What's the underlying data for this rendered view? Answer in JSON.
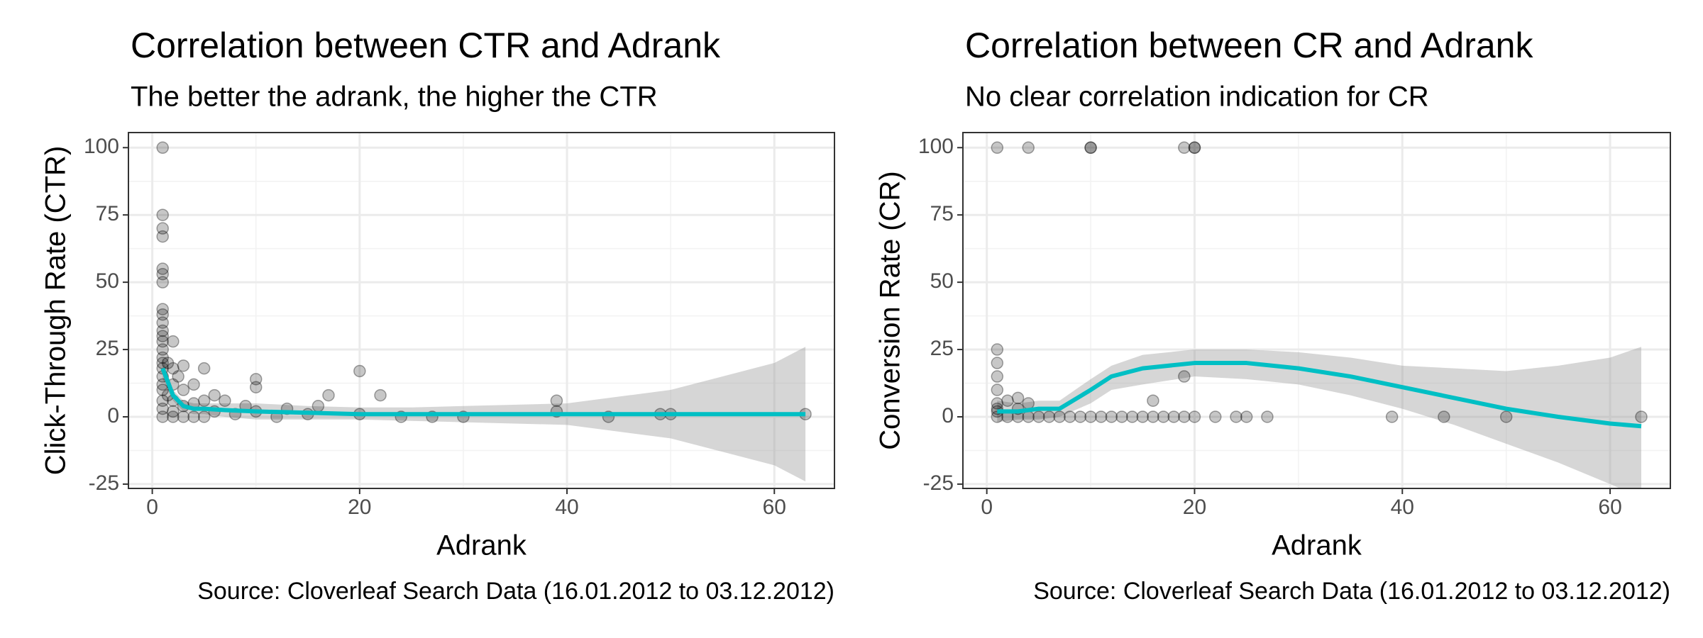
{
  "chart_data": [
    {
      "type": "scatter",
      "title": "Correlation between CTR and Adrank",
      "subtitle": "The better the adrank, the higher the CTR",
      "x_label": "Adrank",
      "y_label": "Click-Through Rate (CTR)",
      "caption": "Source: Cloverleaf Search Data (16.01.2012 to 03.12.2012)",
      "xlim": [
        -2.3,
        65.8
      ],
      "ylim": [
        -26.6,
        105.6
      ],
      "xticks": [
        0,
        20,
        40,
        60
      ],
      "yticks": [
        -25,
        0,
        25,
        50,
        75,
        100
      ],
      "grid": true,
      "point_color": "#000000",
      "points": {
        "x": [
          1,
          1,
          1,
          1,
          1,
          1,
          1,
          1,
          1,
          1,
          1,
          1,
          1,
          1,
          1,
          1,
          1,
          1,
          1,
          1,
          1,
          1,
          1,
          1.5,
          1.5,
          2,
          2,
          2,
          2,
          2,
          2,
          2.5,
          3,
          3,
          3,
          3,
          4,
          4,
          4,
          5,
          5,
          5,
          6,
          6,
          7,
          8,
          9,
          10,
          10,
          10,
          12,
          13,
          15,
          16,
          17,
          20,
          20,
          22,
          24,
          27,
          30,
          39,
          39,
          44,
          49,
          50,
          63
        ],
        "y": [
          100,
          75,
          70,
          67,
          55,
          53,
          50,
          40,
          38,
          35,
          32,
          30,
          28,
          25,
          22,
          20,
          18,
          15,
          12,
          10,
          6,
          3,
          0,
          20,
          8,
          28,
          18,
          12,
          6,
          2,
          0,
          15,
          19,
          10,
          4,
          0,
          12,
          5,
          0,
          18,
          6,
          0,
          8,
          2,
          6,
          1,
          4,
          14,
          11,
          2,
          0,
          3,
          1,
          4,
          8,
          17,
          1,
          8,
          0,
          0,
          0,
          6,
          2,
          0,
          1,
          1,
          1
        ]
      },
      "fit": {
        "color": "#00bfc4",
        "x": [
          1,
          1.5,
          2,
          3,
          4,
          5,
          7,
          10,
          15,
          20,
          25,
          30,
          40,
          50,
          60,
          63
        ],
        "y": [
          18,
          13,
          8,
          4,
          3,
          3,
          2.5,
          2,
          1.5,
          1,
          1,
          1,
          1,
          1,
          1,
          1
        ],
        "lower": [
          14,
          10,
          6,
          2,
          1,
          1,
          0,
          -1,
          -1,
          -1,
          -1.5,
          -2,
          -3,
          -8,
          -18,
          -24
        ],
        "upper": [
          22,
          16,
          10,
          6,
          5,
          5,
          5,
          5,
          4,
          3.5,
          3.5,
          4,
          5,
          10,
          20,
          26
        ]
      }
    },
    {
      "type": "scatter",
      "title": "Correlation between CR and Adrank",
      "subtitle": "No clear correlation indication for CR",
      "x_label": "Adrank",
      "y_label": "Conversion Rate (CR)",
      "caption": "Source: Cloverleaf Search Data (16.01.2012 to 03.12.2012)",
      "xlim": [
        -2.3,
        65.8
      ],
      "ylim": [
        -26.6,
        105.6
      ],
      "xticks": [
        0,
        20,
        40,
        60
      ],
      "yticks": [
        -25,
        0,
        25,
        50,
        75,
        100
      ],
      "grid": true,
      "point_color": "#000000",
      "points": {
        "x": [
          1,
          4,
          10,
          10,
          19,
          20,
          20,
          1,
          1,
          1,
          1,
          1,
          1,
          1,
          2,
          3,
          3,
          4,
          19,
          16,
          1,
          2,
          3,
          4,
          5,
          6,
          7,
          8,
          9,
          10,
          11,
          12,
          13,
          14,
          15,
          16,
          17,
          18,
          19,
          20,
          22,
          24,
          25,
          27,
          39,
          44,
          50,
          63
        ],
        "y": [
          100,
          100,
          100,
          100,
          100,
          100,
          100,
          25,
          20,
          15,
          10,
          5,
          3,
          2,
          6,
          7,
          3,
          5,
          15,
          6,
          0,
          0,
          0,
          0,
          0,
          0,
          0,
          0,
          0,
          0,
          0,
          0,
          0,
          0,
          0,
          0,
          0,
          0,
          0,
          0,
          0,
          0,
          0,
          0,
          0,
          0,
          0,
          0
        ]
      },
      "fit": {
        "color": "#00bfc4",
        "x": [
          1,
          3,
          5,
          7,
          10,
          12,
          15,
          20,
          25,
          30,
          35,
          40,
          45,
          50,
          55,
          60,
          63
        ],
        "y": [
          2,
          2,
          3,
          3,
          10,
          15,
          18,
          20,
          20,
          18,
          15,
          11,
          7,
          3,
          0,
          -2.5,
          -3.5
        ],
        "lower": [
          -2,
          -1,
          -1,
          0,
          5,
          10,
          12,
          15,
          14,
          12,
          8,
          3,
          -3,
          -10,
          -17,
          -25,
          -30
        ],
        "upper": [
          6,
          5,
          6,
          6,
          14,
          19,
          23,
          25,
          25,
          24,
          22,
          19,
          18,
          17,
          19,
          22,
          26
        ]
      }
    }
  ]
}
